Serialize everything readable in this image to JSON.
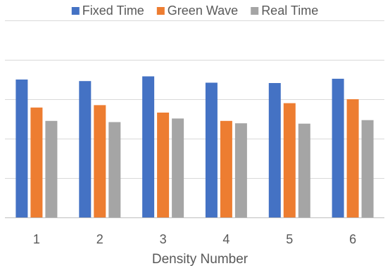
{
  "chart_data": {
    "type": "bar",
    "title": "",
    "xlabel": "Density Number",
    "ylabel": "",
    "ylim": [
      0,
      5
    ],
    "grid": true,
    "legend_position": "top",
    "categories": [
      "1",
      "2",
      "3",
      "4",
      "5",
      "6"
    ],
    "series": [
      {
        "name": "Fixed Time",
        "color": "#4472C4",
        "values": [
          3.5,
          3.46,
          3.58,
          3.42,
          3.41,
          3.52
        ]
      },
      {
        "name": "Green Wave",
        "color": "#ED7D31",
        "values": [
          2.79,
          2.85,
          2.66,
          2.45,
          2.9,
          3.0
        ]
      },
      {
        "name": "Real Time",
        "color": "#A5A5A5",
        "values": [
          2.45,
          2.42,
          2.51,
          2.39,
          2.38,
          2.47
        ]
      }
    ]
  }
}
